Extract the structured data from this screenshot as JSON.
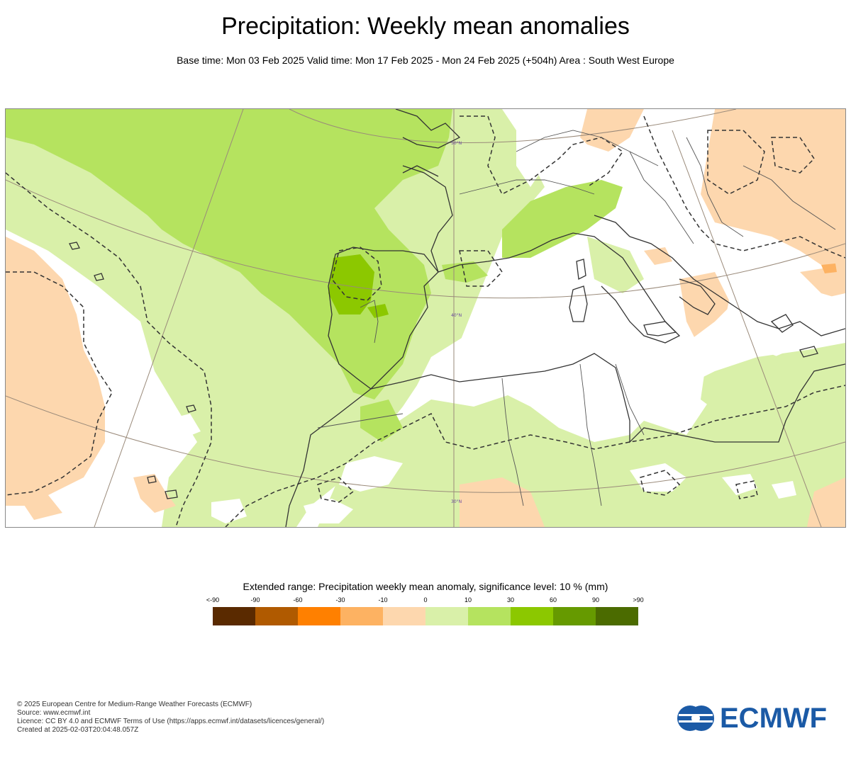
{
  "header": {
    "title": "Precipitation: Weekly mean anomalies",
    "subtitle": "Base time: Mon 03 Feb 2025 Valid time: Mon 17 Feb 2025 - Mon 24 Feb 2025 (+504h) Area : South West Europe"
  },
  "map": {
    "region": "South West Europe",
    "latitude_labels": [
      "50°N",
      "40°N",
      "30°N"
    ],
    "colors": {
      "land_line": "#333333",
      "graticule": "#9a8a7a",
      "light_green": "#d9f0a9",
      "mid_green": "#b5e35f",
      "strong_green": "#8cc800",
      "light_orange": "#fdd7ae",
      "mid_orange": "#fdb262",
      "strong_orange": "#ff8000"
    }
  },
  "legend": {
    "title": "Extended range: Precipitation weekly mean anomaly, significance level: 10 % (mm)",
    "ticks": [
      "<-90",
      "-90",
      "-60",
      "-30",
      "-10",
      "0",
      "10",
      "30",
      "60",
      "90",
      ">90"
    ],
    "colors": [
      "#5a2a00",
      "#b05a00",
      "#ff8000",
      "#fdb262",
      "#fdd7ae",
      "#d9f0a9",
      "#b5e35f",
      "#8cc800",
      "#669a00",
      "#4b6b00"
    ]
  },
  "footer": {
    "line1": "© 2025 European Centre for Medium-Range Weather Forecasts (ECMWF)",
    "line2": "Source: www.ecmwf.int",
    "line3": "Licence: CC BY 4.0 and ECMWF Terms of Use (https://apps.ecmwf.int/datasets/licences/general/)",
    "line4": "Created at 2025-02-03T20:04:48.057Z"
  },
  "logo": {
    "text": "ECMWF",
    "color": "#1b5aa6"
  }
}
